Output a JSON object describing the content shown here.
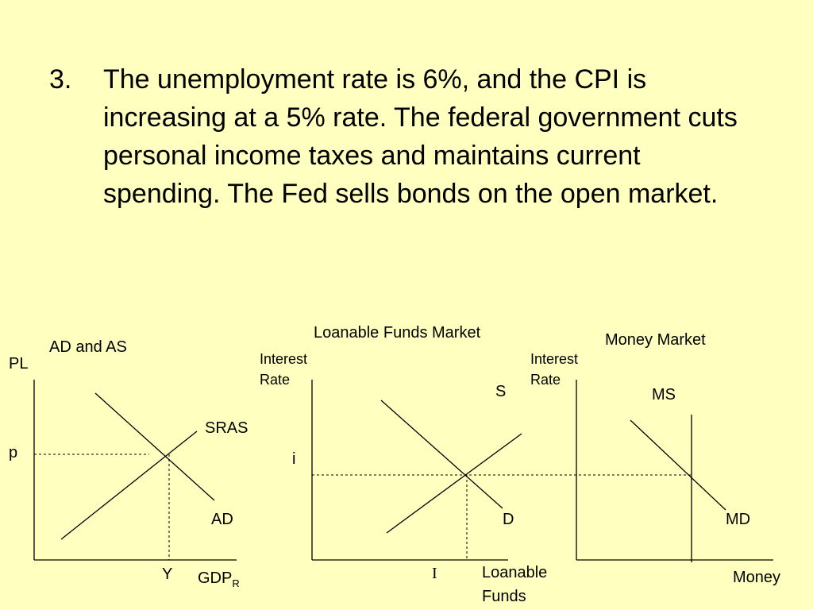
{
  "question": {
    "number": "3.",
    "text": "The unemployment rate is 6%, and the CPI is increasing at a 5% rate.  The federal government cuts personal income taxes and maintains current spending.  The Fed sells bonds on the open market."
  },
  "ad_as": {
    "title": "AD and AS",
    "y_axis": "PL",
    "x_axis": "GDP",
    "x_axis_sub": "R",
    "price_label": "p",
    "output_label": "Y",
    "sras_label": "SRAS",
    "ad_label": "AD"
  },
  "loanable_funds": {
    "title": "Loanable Funds Market",
    "y_axis": "Interest\nRate",
    "x_axis": "Loanable\nFunds",
    "supply_label": "S",
    "demand_label": "D",
    "rate_label": "i",
    "quantity_label": "I"
  },
  "money_market": {
    "title": "Money Market",
    "y_axis": "Interest\nRate",
    "x_axis": "Money",
    "ms_label": "MS",
    "md_label": "MD"
  }
}
